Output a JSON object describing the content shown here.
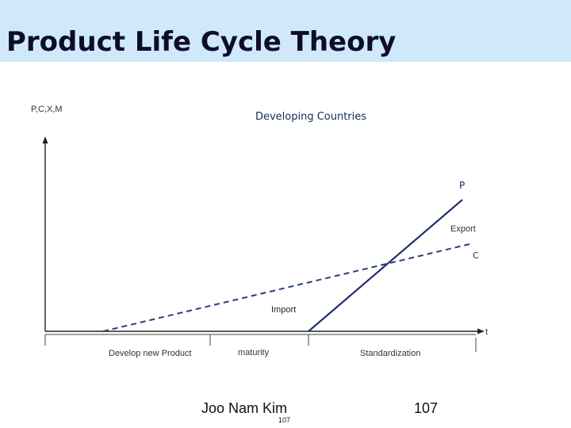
{
  "slide": {
    "title": "Product Life Cycle Theory",
    "author": "Joo Nam Kim",
    "small_page_number": "107",
    "page_number": "107"
  },
  "diagram": {
    "heading": "Developing Countries",
    "y_axis_label": "P,C,X,M",
    "x_axis_label": "t",
    "line_p_label": "P",
    "line_c_label": "C",
    "export_label": "Export",
    "import_label": "Import",
    "stages": [
      "Develop new Product",
      "maturity",
      "Standardization"
    ]
  },
  "colors": {
    "title_bar": "#cfe9fb",
    "line_p": "#1f2f6b",
    "line_c": "#2a3f7a",
    "heading": "#1a2a5a"
  }
}
